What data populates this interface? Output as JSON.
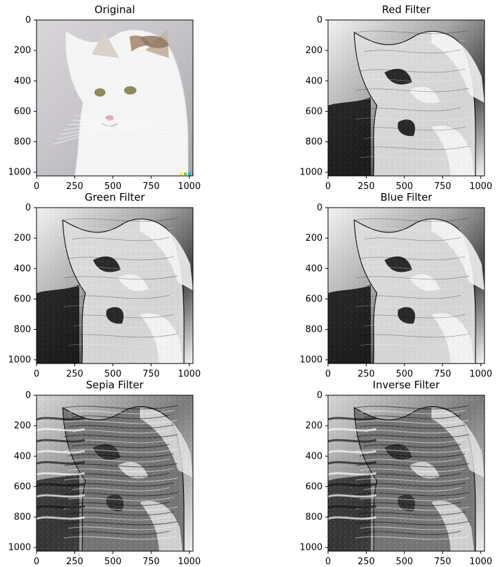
{
  "figure": {
    "kind": "matplotlib-subplots",
    "rows": 3,
    "cols": 2
  },
  "colors": {
    "background": "#ffffff",
    "axis": "#000000",
    "text": "#000000"
  },
  "chart_data": [
    {
      "type": "image",
      "title": "Original",
      "image_kind": "photo-cat",
      "xticks": [
        "0",
        "250",
        "500",
        "750",
        "1000"
      ],
      "yticks": [
        "0",
        "200",
        "400",
        "600",
        "800",
        "1000"
      ],
      "xlim": [
        0,
        1024
      ],
      "ylim": [
        1024,
        0
      ],
      "grid": false
    },
    {
      "type": "image",
      "title": "Red Filter",
      "image_kind": "grayscale-filter",
      "xticks": [
        "0",
        "250",
        "500",
        "750",
        "1000"
      ],
      "yticks": [
        "0",
        "200",
        "400",
        "600",
        "800",
        "1000"
      ],
      "xlim": [
        0,
        1024
      ],
      "ylim": [
        1024,
        0
      ],
      "grid": false
    },
    {
      "type": "image",
      "title": "Green Filter",
      "image_kind": "grayscale-filter",
      "xticks": [
        "0",
        "250",
        "500",
        "750",
        "1000"
      ],
      "yticks": [
        "0",
        "200",
        "400",
        "600",
        "800",
        "1000"
      ],
      "xlim": [
        0,
        1024
      ],
      "ylim": [
        1024,
        0
      ],
      "grid": false
    },
    {
      "type": "image",
      "title": "Blue Filter",
      "image_kind": "grayscale-filter",
      "xticks": [
        "0",
        "250",
        "500",
        "750",
        "1000"
      ],
      "yticks": [
        "0",
        "200",
        "400",
        "600",
        "800",
        "1000"
      ],
      "xlim": [
        0,
        1024
      ],
      "ylim": [
        1024,
        0
      ],
      "grid": false
    },
    {
      "type": "image",
      "title": "Sepia Filter",
      "image_kind": "grayscale-filter",
      "xticks": [
        "0",
        "250",
        "500",
        "750",
        "1000"
      ],
      "yticks": [
        "0",
        "200",
        "400",
        "600",
        "800",
        "1000"
      ],
      "xlim": [
        0,
        1024
      ],
      "ylim": [
        1024,
        0
      ],
      "grid": false
    },
    {
      "type": "image",
      "title": "Inverse Filter",
      "image_kind": "grayscale-filter",
      "xticks": [
        "0",
        "250",
        "500",
        "750",
        "1000"
      ],
      "yticks": [
        "0",
        "200",
        "400",
        "600",
        "800",
        "1000"
      ],
      "xlim": [
        0,
        1024
      ],
      "ylim": [
        1024,
        0
      ],
      "grid": false
    }
  ]
}
